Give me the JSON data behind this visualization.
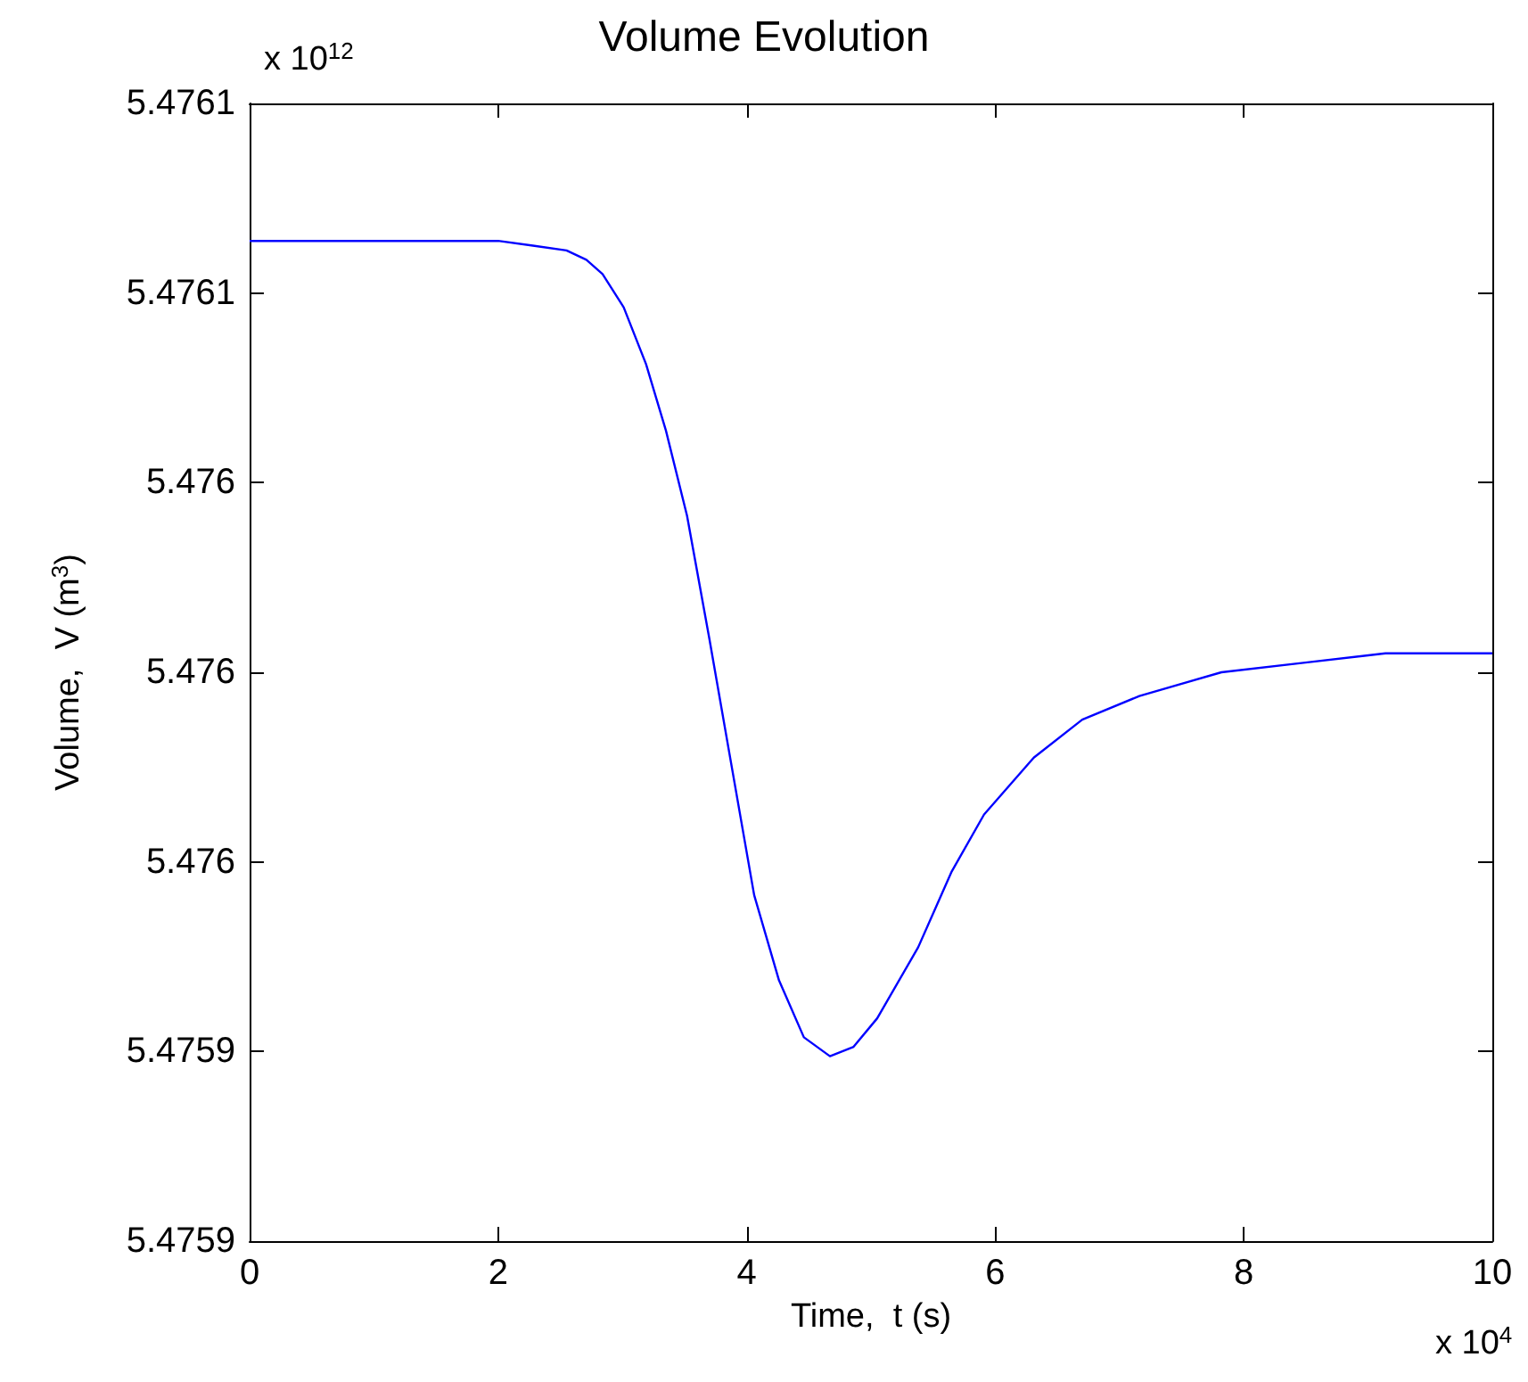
{
  "chart_data": {
    "type": "line",
    "title": "Volume Evolution",
    "xlabel": "Time,  t (s)",
    "ylabel": "Volume,  V (m$^{3}$)",
    "annotations": [
      "x 10$^{12}$",
      "x 10$^{4}$"
    ],
    "series": [
      {
        "color": "#0000ff",
        "x": [
          0,
          2,
          2.28,
          2.55,
          2.71,
          2.84,
          3.01,
          3.19,
          3.35,
          3.52,
          3.7,
          3.86,
          4.06,
          4.26,
          4.46,
          4.67,
          4.86,
          5.05,
          5.38,
          5.65,
          5.91,
          6.31,
          6.7,
          7.16,
          7.82,
          8.48,
          9.14,
          10
        ],
        "values": [
          5.476091,
          5.476091,
          5.47609,
          5.476089,
          5.476087,
          5.476084,
          5.476077,
          5.476065,
          5.476051,
          5.476033,
          5.476007,
          5.475983,
          5.475953,
          5.475935,
          5.475923,
          5.475919,
          5.475921,
          5.475927,
          5.475942,
          5.475958,
          5.47597,
          5.475982,
          5.47599,
          5.475995,
          5.476,
          5.476002,
          5.476004,
          5.476004
        ]
      }
    ],
    "xlim": [
      0,
      10
    ],
    "xticks": [
      0,
      2,
      4,
      6,
      8,
      10
    ],
    "ylim": [
      5.47588,
      5.47612
    ],
    "yticks": [
      {
        "value": 5.47588,
        "label": "5.4759"
      },
      {
        "value": 5.47592,
        "label": "5.4759"
      },
      {
        "value": 5.47596,
        "label": "5.476"
      },
      {
        "value": 5.476,
        "label": "5.476"
      },
      {
        "value": 5.47604,
        "label": "5.476"
      },
      {
        "value": 5.47608,
        "label": "5.4761"
      },
      {
        "value": 5.47612,
        "label": "5.4761"
      }
    ],
    "grid": false,
    "marker": "none",
    "line_style": "solid"
  }
}
